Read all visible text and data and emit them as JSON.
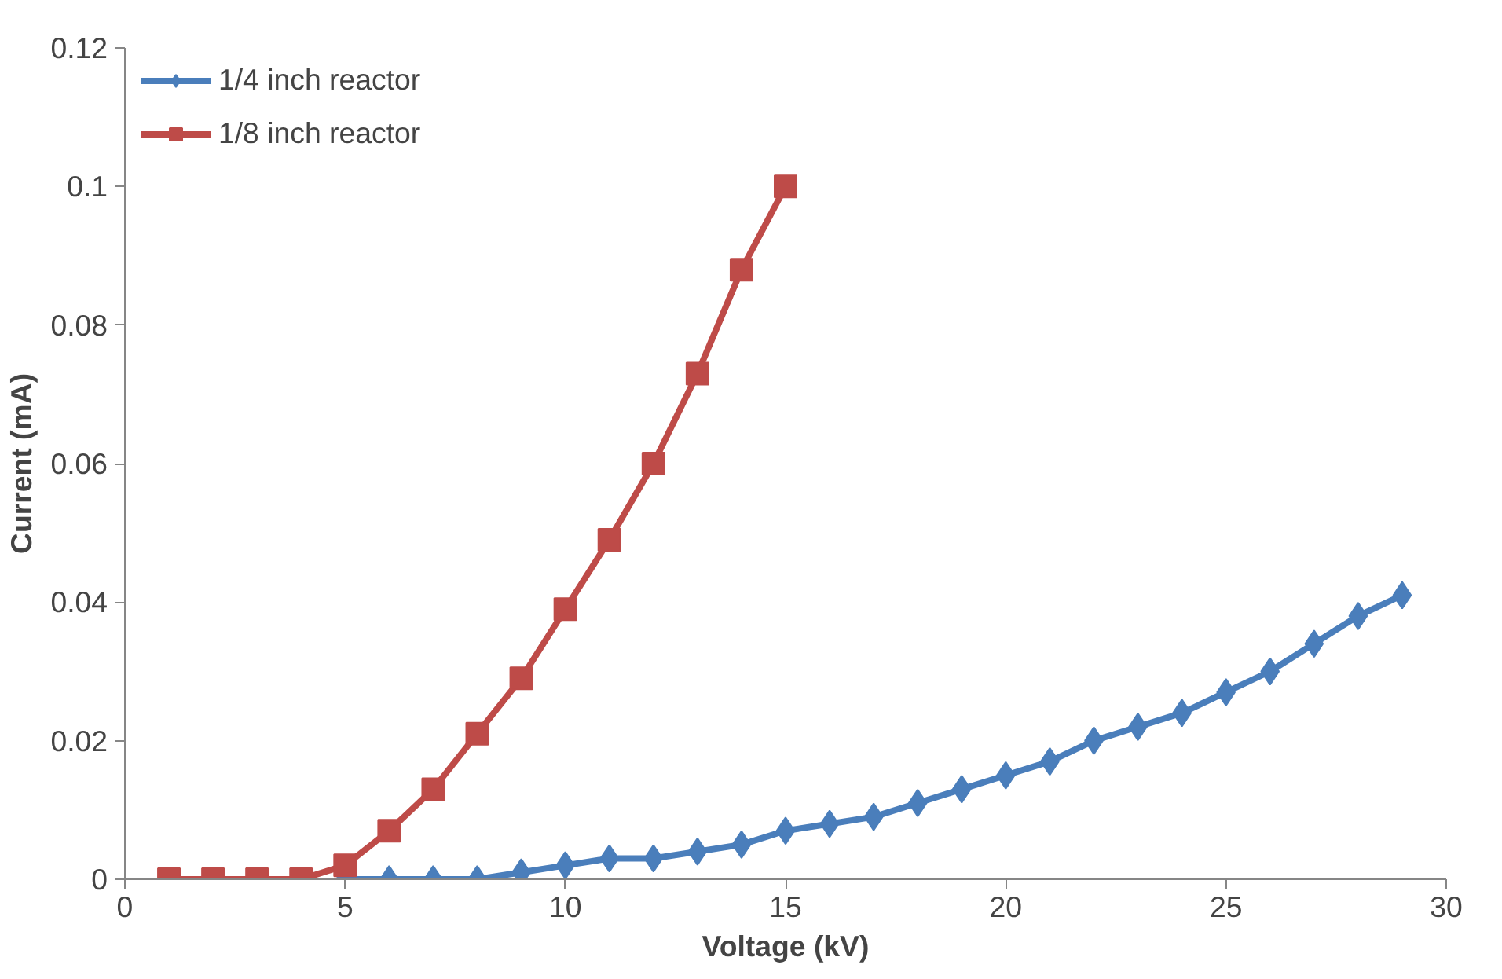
{
  "chart_data": {
    "type": "line",
    "xlabel": "Voltage (kV)",
    "ylabel": "Current (mA)",
    "xlim": [
      0,
      30
    ],
    "xticks": [
      0,
      5,
      10,
      15,
      20,
      25,
      30
    ],
    "ylim": [
      0,
      0.12
    ],
    "yticks": [
      0,
      0.02,
      0.04,
      0.06,
      0.08,
      0.1,
      0.12
    ],
    "grid": false,
    "legend": "top left",
    "line_style": "solid",
    "series": [
      {
        "name": "1/4 inch reactor",
        "color": "#4a7ebb",
        "marker": "diamond",
        "x": [
          5,
          6,
          7,
          8,
          9,
          10,
          11,
          12,
          13,
          14,
          15,
          16,
          17,
          18,
          19,
          20,
          21,
          22,
          23,
          24,
          25,
          26,
          27,
          28,
          29
        ],
        "values": [
          0,
          0,
          0,
          0,
          0.001,
          0.002,
          0.003,
          0.003,
          0.004,
          0.005,
          0.007,
          0.008,
          0.009,
          0.011,
          0.013,
          0.015,
          0.017,
          0.02,
          0.022,
          0.024,
          0.027,
          0.03,
          0.034,
          0.038,
          0.041
        ]
      },
      {
        "name": "1/8 inch reactor",
        "color": "#be4b48",
        "marker": "square",
        "x": [
          1,
          2,
          3,
          4,
          5,
          6,
          7,
          8,
          9,
          10,
          11,
          12,
          13,
          14,
          15
        ],
        "values": [
          0,
          0,
          0,
          0,
          0.002,
          0.007,
          0.013,
          0.021,
          0.029,
          0.039,
          0.049,
          0.06,
          0.073,
          0.088,
          0.1
        ]
      }
    ]
  }
}
